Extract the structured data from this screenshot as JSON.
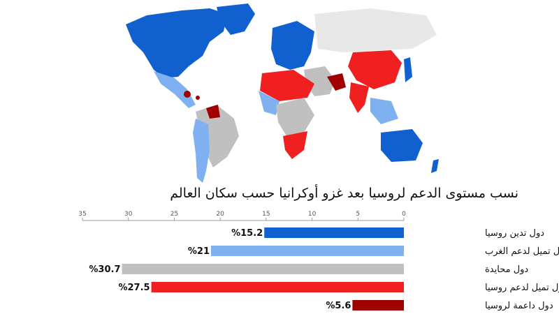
{
  "map": {
    "colors": {
      "opposing": "#1060d0",
      "leaning_west": "#7fb0f0",
      "neutral": "#c0c0c0",
      "leaning_russia": "#f02020",
      "supporting": "#a00000",
      "no_data": "#e8e8e8"
    }
  },
  "chart_data": {
    "type": "bar",
    "orientation": "horizontal",
    "axis_direction": "right-to-left",
    "title": "نسب مستوى الدعم لروسيا بعد غزو أوكرانيا حسب سكان العالم",
    "categories": [
      "دول تدين روسيا",
      "دول تميل لدعم الغرب",
      "دول محايدة",
      "دول تميل لدعم روسيا",
      "دول داعمة لروسيا"
    ],
    "values": [
      15.2,
      21,
      30.7,
      27.5,
      5.6
    ],
    "value_labels": [
      "%15.2",
      "%21",
      "%30.7",
      "%27.5",
      "%5.6"
    ],
    "colors": [
      "#1060d0",
      "#7fb0f0",
      "#c0c0c0",
      "#f02020",
      "#a00000"
    ],
    "xlim": [
      0,
      35
    ],
    "ticks": [
      0,
      5,
      10,
      15,
      20,
      25,
      30,
      35
    ],
    "tick_labels": [
      "0",
      "5",
      "10",
      "15",
      "20",
      "25",
      "30",
      "35"
    ],
    "grid": false,
    "legend": "none"
  }
}
